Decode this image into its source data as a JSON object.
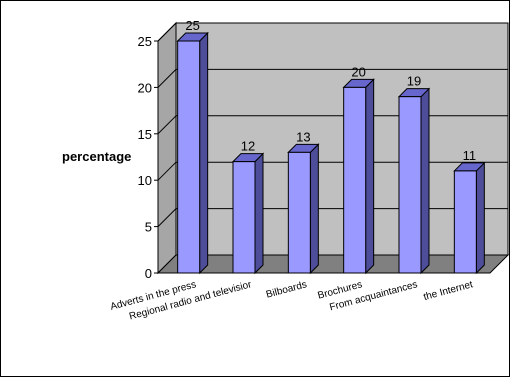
{
  "chart_data": {
    "type": "bar",
    "ylabel": "percentage",
    "ylim": [
      0,
      25
    ],
    "yticks": [
      0,
      5,
      10,
      15,
      20,
      25
    ],
    "grid": true,
    "categories": [
      "Adverts in the press",
      "Regional radio and televisior",
      "Bilboards",
      "Brochures",
      "From acquaintances",
      "the Internet"
    ],
    "values": [
      25,
      12,
      13,
      20,
      19,
      11
    ],
    "data_labels": [
      "25",
      "12",
      "13",
      "20",
      "19",
      "11"
    ],
    "colors": {
      "bar_front": "#9999ff",
      "bar_side": "#4d4d99",
      "bar_top": "#6666cc",
      "wall": "#c0c0c0",
      "floor": "#808080"
    }
  }
}
